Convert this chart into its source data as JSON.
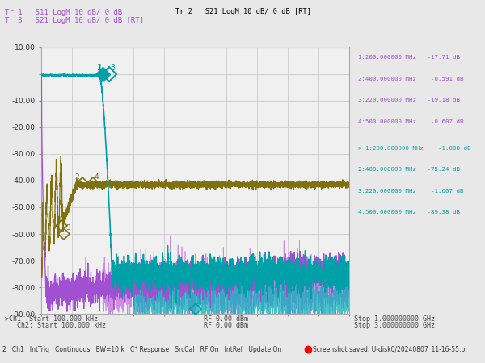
{
  "title_tr1": "Tr 1   S11 LogM 10 dB/ 0 dB",
  "title_tr2": "Tr 2   S21 LogM 10 dB/ 0 dB [RT]",
  "title_tr3": "Tr 3   S21 LogM 10 dB/ 0 dB [RT]",
  "bg_color": "#e8e8e8",
  "plot_bg": "#f0f0f0",
  "grid_color": "#cccccc",
  "ymin": -90,
  "ymax": 10,
  "ytick_labels": [
    "10.00",
    "",
    "-10.00",
    "-20.00",
    "-30.00",
    "-40.00",
    "-50.00",
    "-60.00",
    "-70.00",
    "-80.00",
    "-90.00"
  ],
  "ytick_vals": [
    10,
    0,
    -10,
    -20,
    -30,
    -40,
    -50,
    -60,
    -70,
    -80,
    -90
  ],
  "marker_text_s11": [
    "1:200.000000 MHz   -17.71 dB",
    "2:400.000000 MHz    -0.591 dB",
    "3:220.000000 MHz   -19.18 dB",
    "4:500.000000 MHz    -0.607 dB"
  ],
  "marker_text_s21": [
    "> 1:200.000000 MHz    -1.008 dB",
    "2:400.000000 MHz   -75.24 dB",
    "3:220.000000 MHz    -1.607 dB",
    "4:500.000000 MHz   -89.38 dB"
  ],
  "bottom_text_left1": ">Ch1: Start 100.000 kHz",
  "bottom_text_left2": "   Ch2: Start 100.000 kHz",
  "bottom_text_mid1": "RF 0.00 dBm",
  "bottom_text_mid2": "RF 0.00 dBm",
  "bottom_text_right1": "Stop 1.000000000 GHz",
  "bottom_text_right2": "Stop 3.000000000 GHz",
  "status_bar": "2   Ch1   IntTrig   Continuous   BW=10 k   C* Response   SrcCal   RF On   IntRef   Update On",
  "screenshot_text": "Screenshot saved: U-disk0/20240807_11-16-55.p",
  "color_s11": "#a050d0",
  "color_s21_ch1": "#00a0a8",
  "color_s21_ch2": "#807010",
  "color_tr2_bg": "#00c0c0",
  "color_noise_purple": "#c060e0",
  "color_noise_teal": "#00b0b8"
}
